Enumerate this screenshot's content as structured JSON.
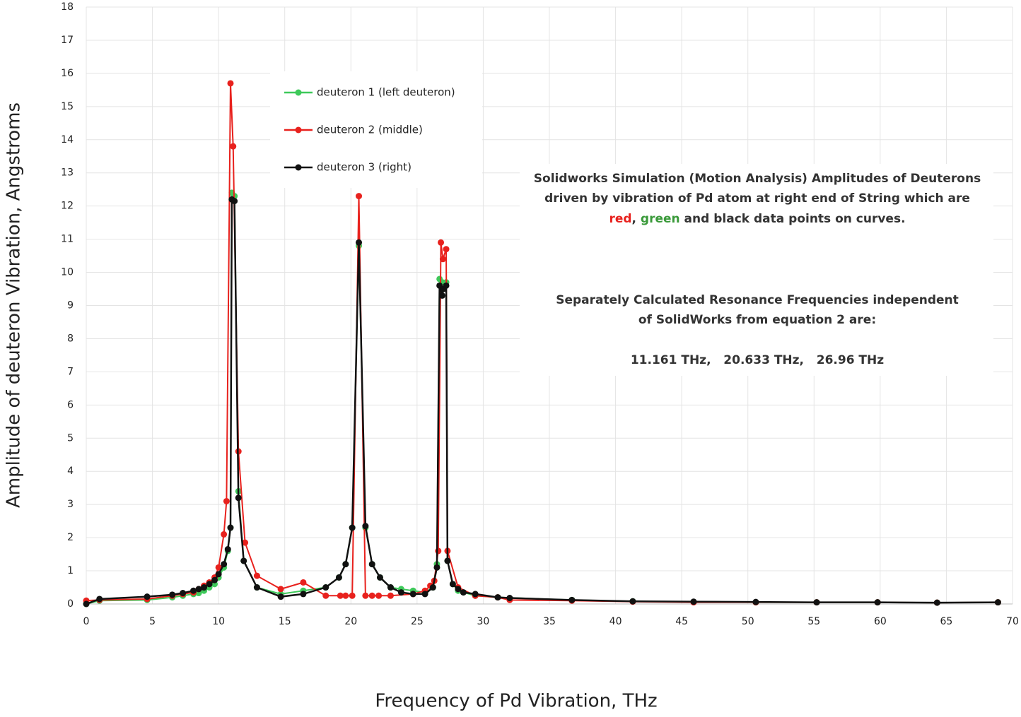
{
  "chart_data": {
    "type": "line",
    "x_label": "Frequency of Pd Vibration,  THz",
    "y_label": "Amplitude of deuteron Vibration, Angstroms",
    "xlim": [
      0,
      70
    ],
    "xticks": [
      0,
      5,
      10,
      15,
      20,
      25,
      30,
      35,
      40,
      45,
      50,
      55,
      60,
      65,
      70
    ],
    "ylim": [
      0,
      18
    ],
    "yticks": [
      0,
      1,
      2,
      3,
      4,
      5,
      6,
      7,
      8,
      9,
      10,
      11,
      12,
      13,
      14,
      15,
      16,
      17,
      18
    ],
    "grid": true,
    "legend": "upper-left",
    "series": [
      {
        "name": "deuteron 1 (left deuteron)",
        "color": "#3ec95a",
        "x": [
          0,
          1,
          4.6,
          6.5,
          7.3,
          8.1,
          8.5,
          8.9,
          9.3,
          9.7,
          10.0,
          10.4,
          10.7,
          10.9,
          11.0,
          11.2,
          11.5,
          11.9,
          12.9,
          14.7,
          16.4,
          18.1,
          19.1,
          19.6,
          20.1,
          20.6,
          21.1,
          21.6,
          22.2,
          23.0,
          23.8,
          24.7,
          25.6,
          26.2,
          26.5,
          26.7,
          26.9,
          27.2,
          27.3,
          27.7,
          28.1,
          28.5,
          29.4,
          31.1,
          36.7,
          41.3,
          45.9,
          50.6,
          55.2,
          59.8,
          64.3,
          68.9
        ],
        "values": [
          0,
          0.1,
          0.12,
          0.2,
          0.25,
          0.3,
          0.33,
          0.4,
          0.5,
          0.6,
          0.8,
          1.1,
          1.6,
          2.3,
          12.4,
          12.3,
          3.4,
          1.3,
          0.5,
          0.3,
          0.4,
          0.5,
          0.8,
          1.2,
          2.3,
          10.8,
          2.3,
          1.2,
          0.8,
          0.5,
          0.45,
          0.4,
          0.35,
          0.5,
          1.2,
          9.8,
          9.7,
          9.7,
          1.3,
          0.6,
          0.4,
          0.35,
          0.25,
          0.2,
          0.12,
          0.08,
          0.06,
          0.05,
          0.05,
          0.05,
          0.04,
          0.05
        ]
      },
      {
        "name": "deuteron 2 (middle)",
        "color": "#e8211d",
        "x": [
          0,
          1,
          4.6,
          6.5,
          7.3,
          8.1,
          8.5,
          8.9,
          9.3,
          9.7,
          10.0,
          10.4,
          10.6,
          10.9,
          11.1,
          11.5,
          12.0,
          12.9,
          14.7,
          16.4,
          18.1,
          19.2,
          19.6,
          20.1,
          20.6,
          21.1,
          21.6,
          22.1,
          23.0,
          24.7,
          25.6,
          26.0,
          26.3,
          26.6,
          26.8,
          26.95,
          27.2,
          27.3,
          28.1,
          29.4,
          31.1,
          32.0,
          36.7,
          41.3,
          45.9,
          50.6,
          55.2,
          59.8,
          64.3,
          68.9
        ],
        "values": [
          0.1,
          0.12,
          0.15,
          0.25,
          0.3,
          0.35,
          0.45,
          0.55,
          0.65,
          0.8,
          1.1,
          2.1,
          3.1,
          15.7,
          13.8,
          4.6,
          1.85,
          0.85,
          0.45,
          0.65,
          0.25,
          0.25,
          0.25,
          0.25,
          12.3,
          0.25,
          0.25,
          0.25,
          0.25,
          0.3,
          0.4,
          0.55,
          0.7,
          1.6,
          10.9,
          10.4,
          10.7,
          1.6,
          0.5,
          0.25,
          0.2,
          0.12,
          0.1,
          0.07,
          0.05,
          0.05,
          0.05,
          0.05,
          0.04,
          0.05
        ]
      },
      {
        "name": "deuteron 3 (right)",
        "color": "#111111",
        "x": [
          0,
          1,
          4.6,
          6.5,
          7.3,
          8.1,
          8.5,
          8.9,
          9.3,
          9.7,
          10.0,
          10.4,
          10.7,
          10.9,
          11.0,
          11.2,
          11.5,
          11.9,
          12.9,
          14.7,
          16.4,
          18.1,
          19.1,
          19.6,
          20.1,
          20.6,
          21.1,
          21.6,
          22.2,
          23.0,
          23.8,
          24.7,
          25.6,
          26.2,
          26.5,
          26.7,
          26.9,
          27.0,
          27.2,
          27.3,
          27.7,
          28.1,
          28.5,
          29.4,
          31.1,
          32.0,
          36.7,
          41.3,
          45.9,
          50.6,
          55.2,
          59.8,
          64.3,
          68.9
        ],
        "values": [
          0,
          0.15,
          0.22,
          0.28,
          0.33,
          0.4,
          0.45,
          0.5,
          0.6,
          0.72,
          0.9,
          1.2,
          1.65,
          2.3,
          12.2,
          12.15,
          3.2,
          1.3,
          0.5,
          0.22,
          0.3,
          0.5,
          0.8,
          1.2,
          2.3,
          10.9,
          2.35,
          1.2,
          0.8,
          0.5,
          0.35,
          0.3,
          0.3,
          0.5,
          1.1,
          9.6,
          9.3,
          9.5,
          9.6,
          1.3,
          0.6,
          0.45,
          0.35,
          0.3,
          0.2,
          0.18,
          0.12,
          0.08,
          0.07,
          0.06,
          0.05,
          0.05,
          0.04,
          0.05
        ]
      }
    ],
    "annotations": [
      [
        {
          "text": "Solidworks Simulation (Motion Analysis) Amplitudes of Deuterons"
        }
      ],
      [
        {
          "text": "driven by vibration of Pd atom at right end of String which are"
        }
      ],
      [
        {
          "text": "red",
          "color": "#e8211d"
        },
        {
          "text": ", "
        },
        {
          "text": "green",
          "color": "#3a9a3a"
        },
        {
          "text": " and black data points on curves."
        }
      ],
      [
        {
          "text": "Separately Calculated Resonance Frequencies independent"
        }
      ],
      [
        {
          "text": "of SolidWorks from equation 2 are:"
        }
      ],
      [
        {
          "text": "11.161 THz,   20.633 THz,   26.96 THz"
        }
      ]
    ]
  }
}
